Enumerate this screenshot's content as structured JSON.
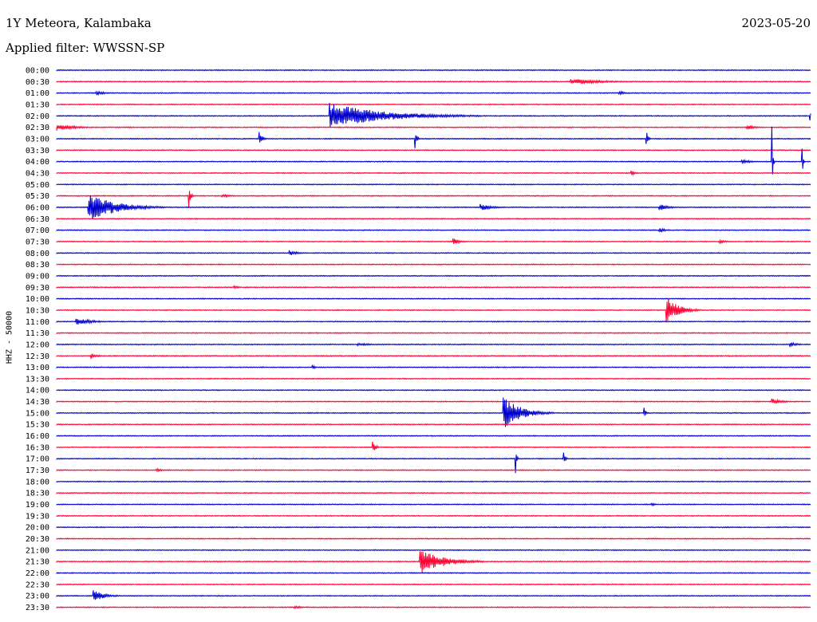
{
  "header": {
    "station": "1Y Meteora, Kalambaka",
    "date": "2023-05-20",
    "filter": "Applied filter: WWSSN-SP"
  },
  "colors": {
    "even_trace": "#0000cc",
    "odd_trace": "#ff0033"
  },
  "chart_data": {
    "type": "line",
    "title": "1Y Meteora, Kalambaka",
    "subtitle": "Applied filter: WWSSN-SP",
    "ylabel": "HHZ - 50000",
    "xlabel": "",
    "x_unit": "minutes within 30-min row",
    "xlim": [
      0,
      30
    ],
    "grid": false,
    "row_labels": [
      "00:00",
      "00:30",
      "01:00",
      "01:30",
      "02:00",
      "02:30",
      "03:00",
      "03:30",
      "04:00",
      "04:30",
      "05:00",
      "05:30",
      "06:00",
      "06:30",
      "07:00",
      "07:30",
      "08:00",
      "08:30",
      "09:00",
      "09:30",
      "10:00",
      "10:30",
      "11:00",
      "11:30",
      "12:00",
      "12:30",
      "13:00",
      "13:30",
      "14:00",
      "14:30",
      "15:00",
      "15:30",
      "16:00",
      "16:30",
      "17:00",
      "17:30",
      "18:00",
      "18:30",
      "19:00",
      "19:30",
      "20:00",
      "20:30",
      "21:00",
      "21:30",
      "22:00",
      "22:30",
      "23:00",
      "23:30"
    ],
    "events": [
      {
        "row": "00:30",
        "minute": 20.5,
        "amplitude": 0.6,
        "duration": 3.5
      },
      {
        "row": "01:00",
        "minute": 1.6,
        "amplitude": 0.4,
        "duration": 1.0
      },
      {
        "row": "01:00",
        "minute": 22.4,
        "amplitude": 0.35,
        "duration": 1.0
      },
      {
        "row": "02:00",
        "minute": 10.9,
        "amplitude": 2.5,
        "duration": 6.0
      },
      {
        "row": "02:00",
        "minute": 30.0,
        "amplitude": 0.8,
        "duration": 0.3
      },
      {
        "row": "02:30",
        "minute": 0.0,
        "amplitude": 0.7,
        "duration": 2.0
      },
      {
        "row": "02:30",
        "minute": 27.5,
        "amplitude": 0.5,
        "duration": 0.8
      },
      {
        "row": "03:00",
        "minute": 8.1,
        "amplitude": 1.2,
        "duration": 0.3
      },
      {
        "row": "03:00",
        "minute": 14.3,
        "amplitude": 1.1,
        "duration": 0.2
      },
      {
        "row": "03:00",
        "minute": 23.5,
        "amplitude": 1.0,
        "duration": 0.2
      },
      {
        "row": "04:00",
        "minute": 27.3,
        "amplitude": 0.4,
        "duration": 1.0
      },
      {
        "row": "04:00",
        "minute": 28.5,
        "amplitude": 2.0,
        "duration": 0.1
      },
      {
        "row": "04:00",
        "minute": 29.7,
        "amplitude": 1.0,
        "duration": 0.1
      },
      {
        "row": "04:30",
        "minute": 22.9,
        "amplitude": 0.6,
        "duration": 0.4
      },
      {
        "row": "05:30",
        "minute": 5.3,
        "amplitude": 1.3,
        "duration": 0.2
      },
      {
        "row": "05:30",
        "minute": 6.6,
        "amplitude": 0.3,
        "duration": 1.2
      },
      {
        "row": "06:00",
        "minute": 1.3,
        "amplitude": 2.8,
        "duration": 3.0
      },
      {
        "row": "06:00",
        "minute": 16.9,
        "amplitude": 0.6,
        "duration": 1.3
      },
      {
        "row": "06:00",
        "minute": 24.0,
        "amplitude": 0.6,
        "duration": 1.3
      },
      {
        "row": "07:00",
        "minute": 24.0,
        "amplitude": 0.4,
        "duration": 0.8
      },
      {
        "row": "07:30",
        "minute": 15.8,
        "amplitude": 0.9,
        "duration": 0.6
      },
      {
        "row": "07:30",
        "minute": 26.4,
        "amplitude": 0.4,
        "duration": 0.8
      },
      {
        "row": "08:00",
        "minute": 9.3,
        "amplitude": 0.5,
        "duration": 0.8
      },
      {
        "row": "09:30",
        "minute": 7.1,
        "amplitude": 0.3,
        "duration": 0.5
      },
      {
        "row": "10:30",
        "minute": 24.3,
        "amplitude": 2.6,
        "duration": 1.3
      },
      {
        "row": "11:00",
        "minute": 0.8,
        "amplitude": 0.7,
        "duration": 1.8
      },
      {
        "row": "12:00",
        "minute": 12.0,
        "amplitude": 0.3,
        "duration": 1.5
      },
      {
        "row": "12:00",
        "minute": 29.2,
        "amplitude": 0.4,
        "duration": 1.0
      },
      {
        "row": "12:30",
        "minute": 1.4,
        "amplitude": 0.5,
        "duration": 0.7
      },
      {
        "row": "13:00",
        "minute": 10.2,
        "amplitude": 0.4,
        "duration": 0.3
      },
      {
        "row": "14:30",
        "minute": 28.5,
        "amplitude": 0.5,
        "duration": 1.2
      },
      {
        "row": "15:00",
        "minute": 17.8,
        "amplitude": 3.0,
        "duration": 2.0
      },
      {
        "row": "15:00",
        "minute": 23.4,
        "amplitude": 0.7,
        "duration": 0.2
      },
      {
        "row": "16:30",
        "minute": 12.6,
        "amplitude": 1.2,
        "duration": 0.3
      },
      {
        "row": "17:00",
        "minute": 18.3,
        "amplitude": 1.2,
        "duration": 0.1
      },
      {
        "row": "17:00",
        "minute": 20.2,
        "amplitude": 1.0,
        "duration": 0.2
      },
      {
        "row": "17:30",
        "minute": 4.0,
        "amplitude": 0.4,
        "duration": 0.5
      },
      {
        "row": "19:00",
        "minute": 23.7,
        "amplitude": 0.3,
        "duration": 0.4
      },
      {
        "row": "21:30",
        "minute": 14.5,
        "amplitude": 2.6,
        "duration": 2.5
      },
      {
        "row": "23:00",
        "minute": 1.5,
        "amplitude": 1.0,
        "duration": 1.3
      },
      {
        "row": "23:30",
        "minute": 9.5,
        "amplitude": 0.3,
        "duration": 1.0
      }
    ]
  }
}
